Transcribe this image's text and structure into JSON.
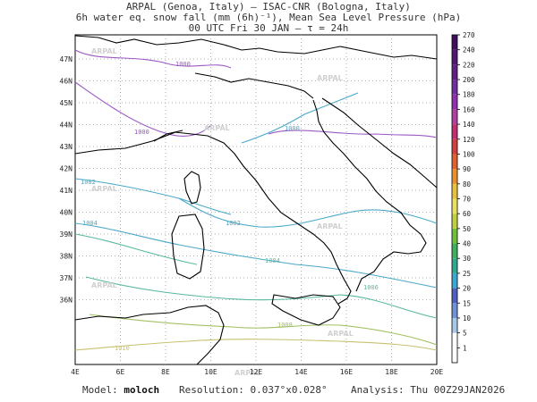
{
  "header": {
    "line1": "ARPAL (Genoa, Italy)  –  ISAC-CNR (Bologna, Italy)",
    "line2": "6h water eq. snow fall (mm (6h)⁻¹), Mean Sea Level Pressure (hPa)",
    "line3": "00 UTC Fri 30 JAN  –  τ = 24h"
  },
  "map": {
    "lon_labels": [
      "4E",
      "6E",
      "8E",
      "10E",
      "12E",
      "14E",
      "16E",
      "18E",
      "20E"
    ],
    "lat_labels": [
      "47N",
      "46N",
      "45N",
      "44N",
      "43N",
      "42N",
      "41N",
      "40N",
      "39N",
      "38N",
      "37N",
      "36N"
    ],
    "watermark": "ARPAL",
    "isobars": [
      {
        "label": "1000",
        "color": "#9b59c6"
      },
      {
        "label": "1000",
        "color": "#9b59c6"
      },
      {
        "label": "1000",
        "color": "#4aa8c8"
      },
      {
        "label": "1002",
        "color": "#4aa8c8"
      },
      {
        "label": "1002",
        "color": "#4aa8c8"
      },
      {
        "label": "1004",
        "color": "#4aa8c8"
      },
      {
        "label": "1004",
        "color": "#58b8a0"
      },
      {
        "label": "1006",
        "color": "#58b8a0"
      },
      {
        "label": "1008",
        "color": "#a0c060"
      },
      {
        "label": "1010",
        "color": "#c8c070"
      }
    ]
  },
  "colorbar": {
    "levels": [
      "1",
      "5",
      "10",
      "15",
      "20",
      "25",
      "30",
      "40",
      "50",
      "60",
      "70",
      "80",
      "90",
      "100",
      "120",
      "140",
      "160",
      "180",
      "200",
      "220",
      "240",
      "270"
    ],
    "colors": [
      "#ffffff",
      "#a8c8e8",
      "#7090d8",
      "#5060c0",
      "#3aa8d0",
      "#30a890",
      "#40b060",
      "#70c040",
      "#c0d040",
      "#e8e060",
      "#e8c040",
      "#e89030",
      "#e06030",
      "#d04040",
      "#c03070",
      "#b040a0",
      "#9030b0",
      "#7030a0",
      "#602080",
      "#501870",
      "#401060"
    ]
  },
  "footer": {
    "model_label": "Model:",
    "model_value": "moloch",
    "resolution_label": "Resolution:",
    "resolution_value": "0.037°x0.028°",
    "analysis_label": "Analysis:",
    "analysis_value": "Thu 00Z29JAN2026"
  }
}
